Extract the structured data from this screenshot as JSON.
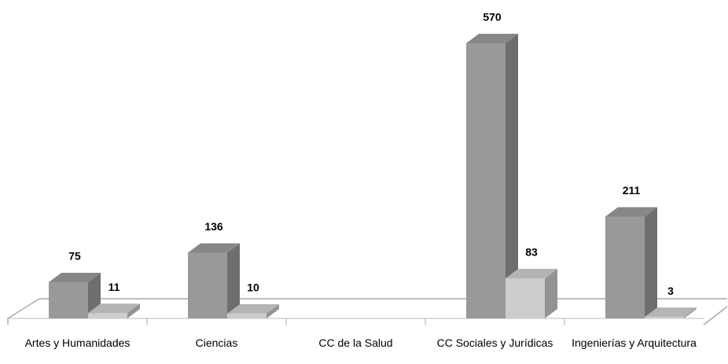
{
  "chart_data": {
    "type": "bar3d",
    "categories": [
      "Artes y Humanidades",
      "Ciencias",
      "CC de la Salud",
      "CC Sociales y Jurídicas",
      "Ingenierías y Arquitectura"
    ],
    "series": [
      {
        "color": "#999999",
        "values": [
          75,
          136,
          null,
          570,
          211
        ]
      },
      {
        "color": "#cccccc",
        "values": [
          11,
          10,
          null,
          83,
          3
        ]
      }
    ]
  }
}
